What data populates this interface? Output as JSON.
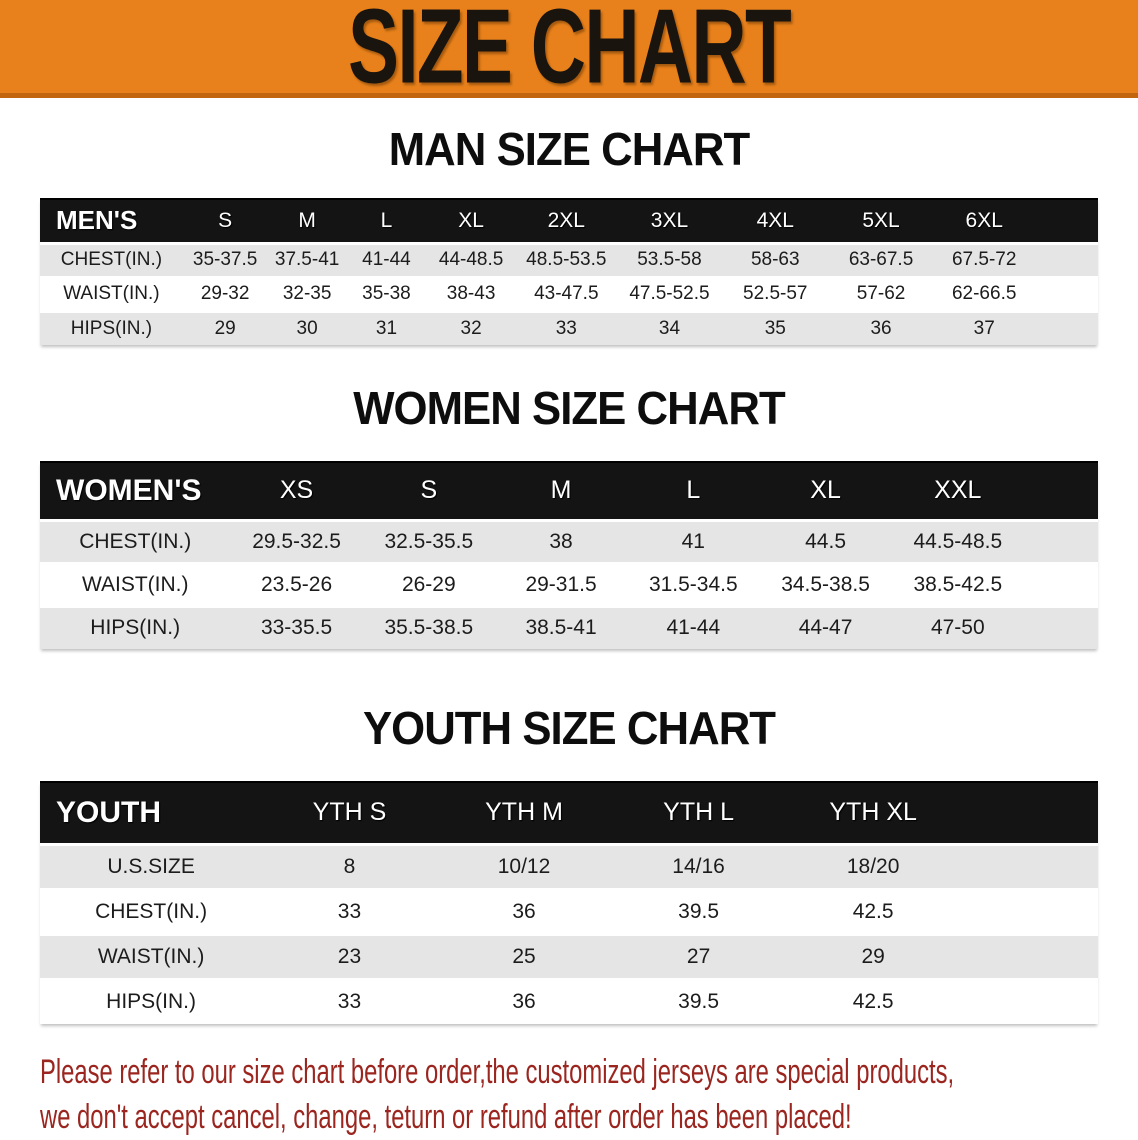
{
  "banner": {
    "title": "SIZE CHART",
    "bg_color": "#E8811B",
    "border_color": "#C1650F",
    "text_color": "#1A140E"
  },
  "sections": [
    {
      "id": "men",
      "title": "MAN SIZE CHART",
      "header_label": "MEN'S",
      "columns": [
        "S",
        "M",
        "L",
        "XL",
        "2XL",
        "3XL",
        "4XL",
        "5XL",
        "6XL"
      ],
      "rows": [
        {
          "label": "CHEST(IN.)",
          "values": [
            "35-37.5",
            "37.5-41",
            "41-44",
            "44-48.5",
            "48.5-53.5",
            "53.5-58",
            "58-63",
            "63-67.5",
            "67.5-72"
          ]
        },
        {
          "label": "WAIST(IN.)",
          "values": [
            "29-32",
            "32-35",
            "35-38",
            "38-43",
            "43-47.5",
            "47.5-52.5",
            "52.5-57",
            "57-62",
            "62-66.5"
          ]
        },
        {
          "label": "HIPS(IN.)",
          "values": [
            "29",
            "30",
            "31",
            "32",
            "33",
            "34",
            "35",
            "36",
            "37"
          ]
        }
      ]
    },
    {
      "id": "women",
      "title": "WOMEN SIZE CHART",
      "header_label": "WOMEN'S",
      "columns": [
        "XS",
        "S",
        "M",
        "L",
        "XL",
        "XXL"
      ],
      "rows": [
        {
          "label": "CHEST(IN.)",
          "values": [
            "29.5-32.5",
            "32.5-35.5",
            "38",
            "41",
            "44.5",
            "44.5-48.5"
          ]
        },
        {
          "label": "WAIST(IN.)",
          "values": [
            "23.5-26",
            "26-29",
            "29-31.5",
            "31.5-34.5",
            "34.5-38.5",
            "38.5-42.5"
          ]
        },
        {
          "label": "HIPS(IN.)",
          "values": [
            "33-35.5",
            "35.5-38.5",
            "38.5-41",
            "41-44",
            "44-47",
            "47-50"
          ]
        }
      ]
    },
    {
      "id": "youth",
      "title": "YOUTH SIZE CHART",
      "header_label": "YOUTH",
      "columns": [
        "YTH S",
        "YTH M",
        "YTH L",
        "YTH XL"
      ],
      "rows": [
        {
          "label": "U.S.SIZE",
          "values": [
            "8",
            "10/12",
            "14/16",
            "18/20"
          ]
        },
        {
          "label": "CHEST(IN.)",
          "values": [
            "33",
            "36",
            "39.5",
            "42.5"
          ]
        },
        {
          "label": "WAIST(IN.)",
          "values": [
            "23",
            "25",
            "27",
            "29"
          ]
        },
        {
          "label": "HIPS(IN.)",
          "values": [
            "33",
            "36",
            "39.5",
            "42.5"
          ]
        }
      ]
    }
  ],
  "disclaimer": {
    "line1": "Please refer to our size chart before order,the customized jerseys are special products,",
    "line2": "we don't accept cancel, change, teturn or refund after order has been placed!",
    "color": "#9B2620"
  },
  "stripe_colors": {
    "odd_row": "#E4E5E4",
    "even_row": "#FFFFFF",
    "header_bg": "#141414",
    "header_text": "#FFFFFF"
  }
}
